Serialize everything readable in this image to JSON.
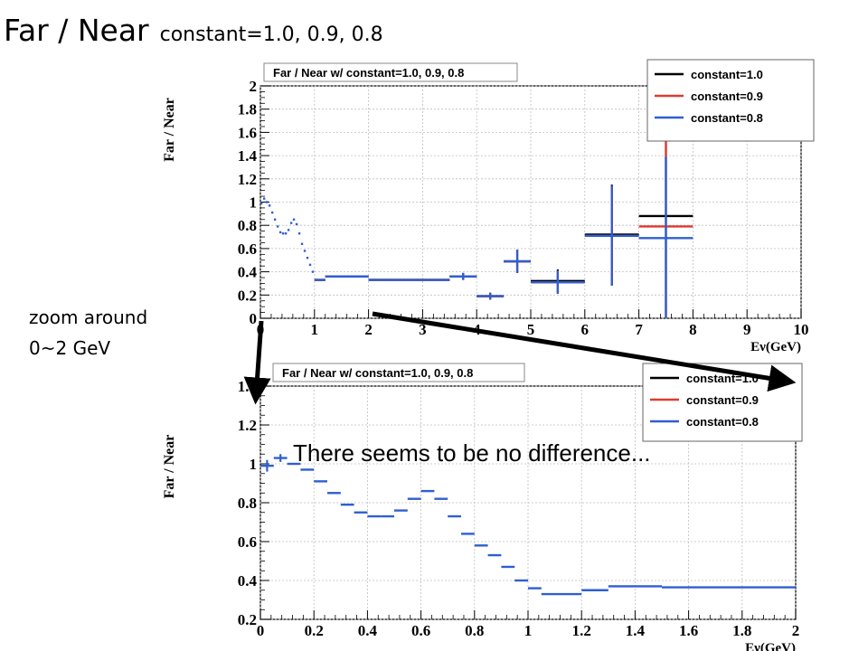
{
  "slide": {
    "title": "Far / Near",
    "subtitle": "constant=1.0, 0.9, 0.8",
    "note_line1": "zoom around",
    "note_line2": "0~2 GeV",
    "comment": "There seems to be no difference..."
  },
  "chart_data": [
    {
      "type": "bar",
      "title": "Far / Near w/ constant=1.0, 0.9, 0.8",
      "xlabel": "Eν(GeV)",
      "ylabel": "Far / Near",
      "xlim": [
        0,
        10
      ],
      "ylim": [
        0,
        2
      ],
      "xticks": [
        0,
        1,
        2,
        3,
        4,
        5,
        6,
        7,
        8,
        9,
        10
      ],
      "yticks": [
        0,
        0.2,
        0.4,
        0.6,
        0.8,
        1,
        1.2,
        1.4,
        1.6,
        1.8,
        2
      ],
      "legend": {
        "position": "top-right",
        "entries": [
          "constant=1.0",
          "constant=0.9",
          "constant=0.8"
        ]
      },
      "colors": {
        "constant=1.0": "#000000",
        "constant=0.9": "#e03a2e",
        "constant=0.8": "#2f5fd0"
      },
      "fine_bins": {
        "edges": [
          0,
          0.05,
          0.1,
          0.15,
          0.2,
          0.25,
          0.3,
          0.35,
          0.4,
          0.45,
          0.5,
          0.55,
          0.6,
          0.65,
          0.7,
          0.75,
          0.8,
          0.85,
          0.9,
          0.95,
          1.0
        ],
        "values": [
          0.99,
          1.03,
          1.0,
          0.97,
          0.91,
          0.85,
          0.79,
          0.74,
          0.73,
          0.73,
          0.76,
          0.82,
          0.85,
          0.81,
          0.73,
          0.64,
          0.58,
          0.52,
          0.46,
          0.4
        ]
      },
      "series": [
        {
          "name": "constant=1.0",
          "bins": [
            [
              1.0,
              1.2,
              0.33
            ],
            [
              1.2,
              1.4,
              0.36
            ],
            [
              1.4,
              2.0,
              0.36
            ],
            [
              2.0,
              3.5,
              0.33
            ],
            [
              3.5,
              4.0,
              0.36
            ],
            [
              4.0,
              4.5,
              0.19
            ],
            [
              4.5,
              5.0,
              0.49
            ],
            [
              5.0,
              6.0,
              0.32
            ],
            [
              6.0,
              7.0,
              0.72
            ],
            [
              7.0,
              8.0,
              0.88
            ]
          ],
          "errors": [
            0.0,
            0.0,
            0.0,
            0.0,
            0.03,
            0.03,
            0.1,
            0.1,
            0.43,
            0.88
          ]
        },
        {
          "name": "constant=0.9",
          "bins": [
            [
              1.0,
              1.2,
              0.33
            ],
            [
              1.2,
              1.4,
              0.36
            ],
            [
              1.4,
              2.0,
              0.36
            ],
            [
              2.0,
              3.5,
              0.33
            ],
            [
              3.5,
              4.0,
              0.36
            ],
            [
              4.0,
              4.5,
              0.19
            ],
            [
              4.5,
              5.0,
              0.49
            ],
            [
              5.0,
              6.0,
              0.31
            ],
            [
              6.0,
              7.0,
              0.71
            ],
            [
              7.0,
              8.0,
              0.79
            ]
          ],
          "errors": [
            0.0,
            0.0,
            0.0,
            0.0,
            0.03,
            0.03,
            0.1,
            0.1,
            0.43,
            0.85
          ]
        },
        {
          "name": "constant=0.8",
          "bins": [
            [
              1.0,
              1.2,
              0.33
            ],
            [
              1.2,
              1.4,
              0.36
            ],
            [
              1.4,
              2.0,
              0.36
            ],
            [
              2.0,
              3.5,
              0.33
            ],
            [
              3.5,
              4.0,
              0.36
            ],
            [
              4.0,
              4.5,
              0.19
            ],
            [
              4.5,
              5.0,
              0.49
            ],
            [
              5.0,
              6.0,
              0.31
            ],
            [
              6.0,
              7.0,
              0.71
            ],
            [
              7.0,
              8.0,
              0.69
            ]
          ],
          "errors": [
            0.0,
            0.0,
            0.0,
            0.0,
            0.03,
            0.03,
            0.1,
            0.1,
            0.43,
            0.7
          ]
        }
      ]
    },
    {
      "type": "bar",
      "title": "Far / Near w/ constant=1.0, 0.9, 0.8",
      "xlabel": "Eν(GeV)",
      "ylabel": "Far / Near",
      "xlim": [
        0,
        2
      ],
      "ylim": [
        0.2,
        1.4
      ],
      "xticks": [
        0,
        0.2,
        0.4,
        0.6,
        0.8,
        1,
        1.2,
        1.4,
        1.6,
        1.8,
        2
      ],
      "yticks": [
        0.2,
        0.4,
        0.6,
        0.8,
        1,
        1.2,
        1.4
      ],
      "legend": {
        "position": "top-right",
        "entries": [
          "constant=1.0",
          "constant=0.9",
          "constant=0.8"
        ]
      },
      "colors": {
        "constant=1.0": "#000000",
        "constant=0.9": "#e03a2e",
        "constant=0.8": "#2f5fd0"
      },
      "series": [
        {
          "name": "constant=0.8",
          "bins": [
            [
              0,
              0.05,
              0.99
            ],
            [
              0.05,
              0.1,
              1.03
            ],
            [
              0.1,
              0.15,
              1.0
            ],
            [
              0.15,
              0.2,
              0.97
            ],
            [
              0.2,
              0.25,
              0.91
            ],
            [
              0.25,
              0.3,
              0.85
            ],
            [
              0.3,
              0.35,
              0.79
            ],
            [
              0.35,
              0.4,
              0.75
            ],
            [
              0.4,
              0.45,
              0.73
            ],
            [
              0.45,
              0.5,
              0.73
            ],
            [
              0.5,
              0.55,
              0.76
            ],
            [
              0.55,
              0.6,
              0.82
            ],
            [
              0.6,
              0.65,
              0.86
            ],
            [
              0.65,
              0.7,
              0.82
            ],
            [
              0.7,
              0.75,
              0.73
            ],
            [
              0.75,
              0.8,
              0.64
            ],
            [
              0.8,
              0.85,
              0.58
            ],
            [
              0.85,
              0.9,
              0.53
            ],
            [
              0.9,
              0.95,
              0.47
            ],
            [
              0.95,
              1.0,
              0.4
            ],
            [
              1.0,
              1.05,
              0.36
            ],
            [
              1.05,
              1.2,
              0.33
            ],
            [
              1.2,
              1.3,
              0.35
            ],
            [
              1.3,
              1.5,
              0.37
            ],
            [
              1.5,
              2.0,
              0.365
            ]
          ],
          "errors": [
            0.03,
            0.02,
            0,
            0,
            0,
            0,
            0,
            0,
            0,
            0,
            0,
            0,
            0,
            0,
            0,
            0,
            0,
            0,
            0,
            0,
            0,
            0,
            0,
            0,
            0
          ]
        }
      ]
    }
  ]
}
